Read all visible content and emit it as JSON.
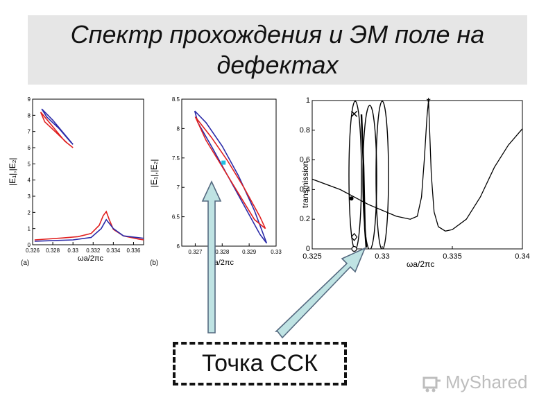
{
  "slide": {
    "title": "Спектр прохождения и ЭМ поле на дефектах",
    "callout": "Точка ССК",
    "watermark": "MyShared"
  },
  "colors": {
    "red": "#e02020",
    "blue": "#2a2aa8",
    "arrow_fill": "#bfe3e3",
    "arrow_stroke": "#556a80"
  },
  "chart_data": [
    {
      "type": "line",
      "panel_label": "(a)",
      "xlabel": "ωa/2πc",
      "ylabel": "|E₁|,|E₂|",
      "xlim": [
        0.326,
        0.337
      ],
      "ylim": [
        0,
        9
      ],
      "xticks": [
        "0.326",
        "0.328",
        "0.33",
        "0.332",
        "0.334",
        "0.336"
      ],
      "yticks": [
        "0",
        "1",
        "2",
        "3",
        "4",
        "5",
        "6",
        "7",
        "8",
        "9"
      ],
      "series": [
        {
          "color": "red",
          "points": [
            [
              0.3268,
              8.2
            ],
            [
              0.3276,
              7.6
            ],
            [
              0.3284,
              7.0
            ],
            [
              0.3292,
              6.4
            ],
            [
              0.33,
              6.0
            ],
            [
              0.3294,
              6.3
            ],
            [
              0.3284,
              6.9
            ],
            [
              0.3272,
              7.6
            ],
            [
              0.3268,
              8.2
            ]
          ]
        },
        {
          "color": "blue",
          "points": [
            [
              0.3269,
              8.4
            ],
            [
              0.328,
              7.7
            ],
            [
              0.3292,
              6.8
            ],
            [
              0.33,
              6.2
            ],
            [
              0.3297,
              6.4
            ],
            [
              0.3286,
              7.2
            ],
            [
              0.3274,
              7.9
            ],
            [
              0.3269,
              8.4
            ]
          ]
        },
        {
          "color": "red",
          "points": [
            [
              0.3262,
              0.3
            ],
            [
              0.329,
              0.42
            ],
            [
              0.3305,
              0.5
            ],
            [
              0.3318,
              0.7
            ],
            [
              0.3326,
              1.2
            ],
            [
              0.333,
              1.8
            ],
            [
              0.3333,
              2.05
            ],
            [
              0.3336,
              1.55
            ],
            [
              0.334,
              0.95
            ],
            [
              0.335,
              0.55
            ],
            [
              0.3365,
              0.35
            ],
            [
              0.337,
              0.3
            ]
          ]
        },
        {
          "color": "blue",
          "points": [
            [
              0.3262,
              0.22
            ],
            [
              0.33,
              0.3
            ],
            [
              0.3318,
              0.45
            ],
            [
              0.3328,
              1.0
            ],
            [
              0.3333,
              1.55
            ],
            [
              0.334,
              1.0
            ],
            [
              0.335,
              0.55
            ],
            [
              0.337,
              0.4
            ]
          ]
        }
      ]
    },
    {
      "type": "line",
      "panel_label": "(b)",
      "xlabel": "ωa/2πc",
      "ylabel": "|E₁|,|E₂|",
      "xlim": [
        0.3265,
        0.33
      ],
      "ylim": [
        6,
        8.5
      ],
      "xticks": [
        "0.327",
        "0.328",
        "0.329",
        "0.33"
      ],
      "yticks": [
        "6",
        "6.5",
        "7",
        "7.5",
        "8",
        "8.5"
      ],
      "series": [
        {
          "color": "blue",
          "points": [
            [
              0.32698,
              8.3
            ],
            [
              0.3274,
              8.1
            ],
            [
              0.328,
              7.7
            ],
            [
              0.3286,
              7.2
            ],
            [
              0.3292,
              6.6
            ],
            [
              0.32965,
              6.05
            ],
            [
              0.3294,
              6.2
            ],
            [
              0.3288,
              6.7
            ],
            [
              0.3282,
              7.2
            ],
            [
              0.3276,
              7.7
            ],
            [
              0.3271,
              8.1
            ],
            [
              0.32698,
              8.3
            ]
          ]
        },
        {
          "color": "red",
          "points": [
            [
              0.327,
              8.2
            ],
            [
              0.3276,
              7.85
            ],
            [
              0.3282,
              7.45
            ],
            [
              0.3288,
              7.0
            ],
            [
              0.3294,
              6.5
            ],
            [
              0.3296,
              6.3
            ],
            [
              0.3292,
              6.45
            ],
            [
              0.3286,
              6.9
            ],
            [
              0.328,
              7.35
            ],
            [
              0.3274,
              7.8
            ],
            [
              0.327,
              8.2
            ]
          ]
        }
      ],
      "marker": {
        "x": 0.32805,
        "y": 7.42,
        "color": "cyan"
      }
    },
    {
      "type": "line",
      "xlabel": "ωa/2πc",
      "ylabel": "transmission",
      "xlim": [
        0.325,
        0.34
      ],
      "ylim": [
        0,
        1
      ],
      "xticks": [
        "0.325",
        "0.33",
        "0.335",
        "0.34"
      ],
      "yticks": [
        "0",
        "0.2",
        "0.4",
        "0.6",
        "0.8",
        "1"
      ],
      "series": [
        {
          "name": "",
          "points": [
            [
              0.325,
              0.47
            ],
            [
              0.327,
              0.4
            ],
            [
              0.329,
              0.3
            ],
            [
              0.331,
              0.22
            ],
            [
              0.332,
              0.2
            ],
            [
              0.3325,
              0.22
            ],
            [
              0.3328,
              0.35
            ],
            [
              0.333,
              0.6
            ],
            [
              0.3332,
              0.9
            ],
            [
              0.3333,
              1.0
            ],
            [
              0.3335,
              0.5
            ],
            [
              0.3337,
              0.25
            ],
            [
              0.334,
              0.15
            ],
            [
              0.3345,
              0.12
            ],
            [
              0.335,
              0.13
            ],
            [
              0.336,
              0.2
            ],
            [
              0.337,
              0.35
            ],
            [
              0.338,
              0.55
            ],
            [
              0.339,
              0.7
            ],
            [
              0.34,
              0.81
            ]
          ]
        }
      ],
      "markers": [
        {
          "symbol": "x",
          "x": 0.328,
          "y": 0.91
        },
        {
          "symbol": "*",
          "x": 0.3333,
          "y": 1.0
        },
        {
          "symbol": "o",
          "x": 0.328,
          "y": 0.0
        },
        {
          "symbol": "diamond",
          "x": 0.328,
          "y": 0.08
        },
        {
          "symbol": "dot",
          "x": 0.3278,
          "y": 0.34
        }
      ]
    }
  ]
}
